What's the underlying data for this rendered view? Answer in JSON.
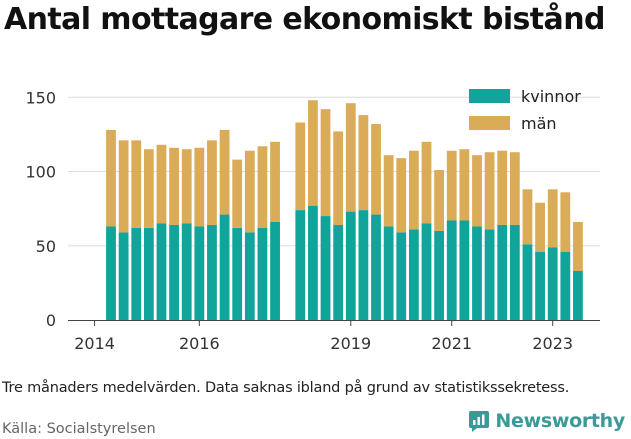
{
  "title": "Antal mottagare ekonomiskt bistånd",
  "caption": "Tre månaders medelvärden. Data saknas ibland på grund av statistikssekretess.",
  "source": "Källa: Socialstyrelsen",
  "logo": {
    "text": "Newsworthy",
    "icon": "newsworthy-chart-icon"
  },
  "colors": {
    "kvinnor": "#11a49b",
    "man": "#dbac58",
    "grid": "#dddddd",
    "axis": "#444444",
    "brand": "#3a9a98"
  },
  "chart_data": {
    "type": "bar",
    "stacked": true,
    "title": "Antal mottagare ekonomiskt bistånd",
    "xlabel": "",
    "ylabel": "",
    "ylim": [
      0,
      160
    ],
    "yticks": [
      0,
      50,
      100,
      150
    ],
    "xticks": [
      "2014",
      "2016",
      "2019",
      "2021",
      "2023"
    ],
    "grid": true,
    "legend_position": "top-right",
    "categories": [
      "2014Q2",
      "2014Q3",
      "2014Q4",
      "2015Q1",
      "2015Q2",
      "2015Q3",
      "2015Q4",
      "2016Q1",
      "2016Q2",
      "2016Q3",
      "2016Q4",
      "2017Q1",
      "2017Q2",
      "2017Q3",
      "2017Q4",
      "2018Q1",
      "2018Q2",
      "2018Q3",
      "2018Q4",
      "2019Q1",
      "2019Q2",
      "2019Q3",
      "2019Q4",
      "2020Q1",
      "2020Q2",
      "2020Q3",
      "2020Q4",
      "2021Q1",
      "2021Q2",
      "2021Q3",
      "2021Q4",
      "2022Q1",
      "2022Q2",
      "2022Q3",
      "2022Q4",
      "2023Q1",
      "2023Q2",
      "2023Q3",
      "2023Q4"
    ],
    "series": [
      {
        "name": "kvinnor",
        "values": [
          63,
          59,
          62,
          62,
          65,
          64,
          65,
          63,
          64,
          71,
          62,
          59,
          62,
          66,
          null,
          74,
          77,
          70,
          64,
          73,
          74,
          71,
          63,
          59,
          61,
          65,
          60,
          67,
          67,
          63,
          61,
          64,
          64,
          51,
          46,
          49,
          46,
          33,
          null
        ]
      },
      {
        "name": "män",
        "values": [
          65,
          62,
          59,
          53,
          53,
          52,
          50,
          53,
          57,
          57,
          46,
          55,
          55,
          54,
          null,
          59,
          71,
          72,
          63,
          73,
          64,
          61,
          48,
          50,
          53,
          55,
          41,
          47,
          48,
          48,
          52,
          50,
          49,
          37,
          33,
          39,
          40,
          33,
          null
        ]
      }
    ]
  }
}
